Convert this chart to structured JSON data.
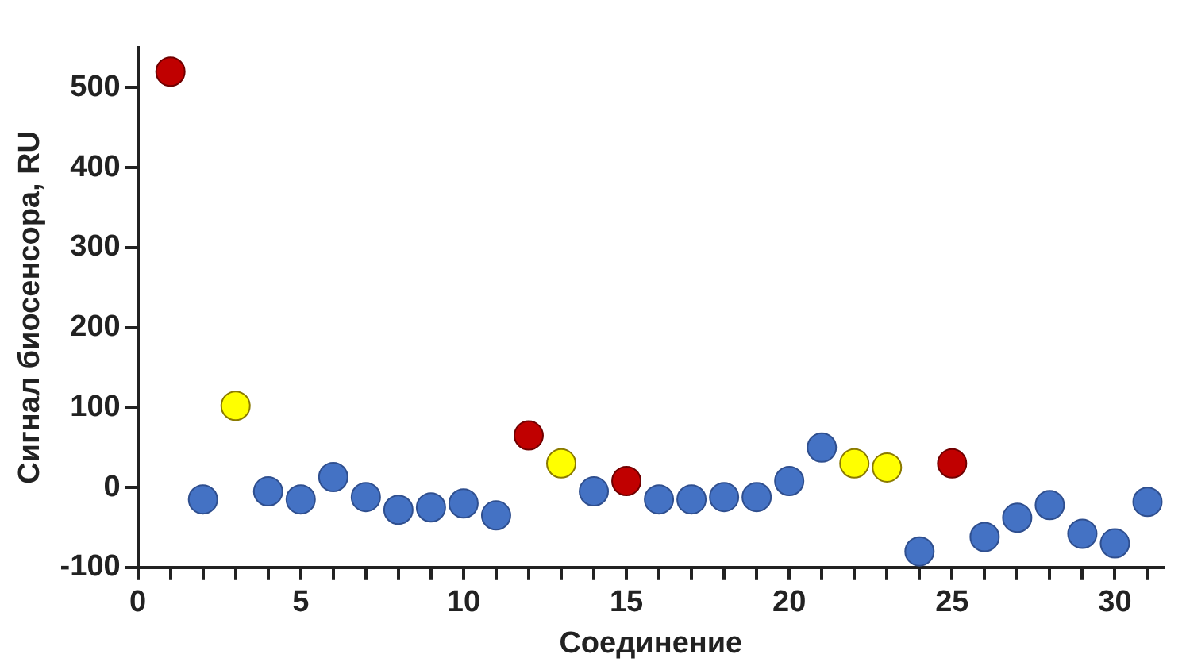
{
  "chart_data": {
    "type": "scatter",
    "xlabel": "Соединение",
    "ylabel": "Сигнал биосенсора, RU",
    "x": [
      1,
      2,
      3,
      4,
      5,
      6,
      7,
      8,
      9,
      10,
      11,
      12,
      13,
      14,
      15,
      16,
      17,
      18,
      19,
      20,
      21,
      22,
      23,
      24,
      25,
      26,
      27,
      28,
      29,
      30,
      31
    ],
    "values": [
      520,
      -15,
      102,
      -5,
      -15,
      13,
      -12,
      -28,
      -25,
      -20,
      -35,
      65,
      30,
      -5,
      8,
      -15,
      -15,
      -12,
      -12,
      8,
      50,
      30,
      25,
      -80,
      30,
      -62,
      -38,
      -22,
      -58,
      -70,
      -18
    ],
    "colors": [
      "#c00000",
      "#4472c4",
      "#ffff00",
      "#4472c4",
      "#4472c4",
      "#4472c4",
      "#4472c4",
      "#4472c4",
      "#4472c4",
      "#4472c4",
      "#4472c4",
      "#c00000",
      "#ffff00",
      "#4472c4",
      "#c00000",
      "#4472c4",
      "#4472c4",
      "#4472c4",
      "#4472c4",
      "#4472c4",
      "#4472c4",
      "#ffff00",
      "#ffff00",
      "#4472c4",
      "#c00000",
      "#4472c4",
      "#4472c4",
      "#4472c4",
      "#4472c4",
      "#4472c4",
      "#4472c4"
    ],
    "xlim": [
      0,
      31.5
    ],
    "xticks": [
      0,
      {
        "value": 1,
        "label": null
      },
      {
        "value": 2,
        "label": null
      },
      {
        "value": 3,
        "label": null
      },
      {
        "value": 4,
        "label": null
      },
      5,
      {
        "value": 6,
        "label": null
      },
      {
        "value": 7,
        "label": null
      },
      {
        "value": 8,
        "label": null
      },
      {
        "value": 9,
        "label": null
      },
      10,
      {
        "value": 11,
        "label": null
      },
      {
        "value": 12,
        "label": null
      },
      {
        "value": 13,
        "label": null
      },
      {
        "value": 14,
        "label": null
      },
      15,
      {
        "value": 16,
        "label": null
      },
      {
        "value": 17,
        "label": null
      },
      {
        "value": 18,
        "label": null
      },
      {
        "value": 19,
        "label": null
      },
      20,
      {
        "value": 21,
        "label": null
      },
      {
        "value": 22,
        "label": null
      },
      {
        "value": 23,
        "label": null
      },
      {
        "value": 24,
        "label": null
      },
      25,
      {
        "value": 26,
        "label": null
      },
      {
        "value": 27,
        "label": null
      },
      {
        "value": 28,
        "label": null
      },
      {
        "value": 29,
        "label": null
      },
      30,
      {
        "value": 31,
        "label": null
      }
    ],
    "ylim": [
      -100,
      550
    ],
    "yticks": [
      -100,
      0,
      100,
      200,
      300,
      400,
      500
    ],
    "grid": false,
    "legend": false,
    "marker": "circle"
  }
}
